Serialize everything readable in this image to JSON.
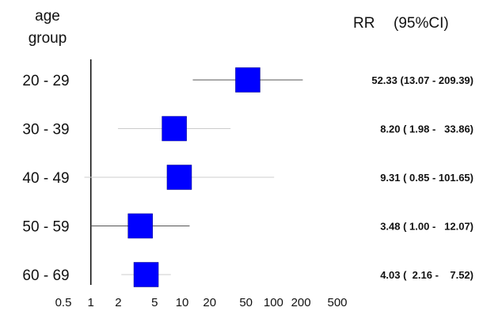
{
  "header": {
    "group_line1": "age",
    "group_line2": "group",
    "rr": "RR",
    "ci": "(95%CI)"
  },
  "colors": {
    "box": "#0000ff",
    "ci_line": "#cccccc",
    "axis": "#111111"
  },
  "chart_data": {
    "type": "forest",
    "x_scale": "log",
    "xlim": [
      0.5,
      500
    ],
    "xticks": [
      0.5,
      1,
      2,
      5,
      10,
      20,
      50,
      100,
      200,
      500
    ],
    "xtick_labels": [
      "0.5",
      "1",
      "2",
      "5",
      "10",
      "20",
      "50",
      "100",
      "200",
      "500"
    ],
    "reference_line": 1,
    "rows": [
      {
        "group": "20 - 29",
        "rr": 52.33,
        "lo": 13.07,
        "hi": 209.39,
        "label": "52.33 (13.07 - 209.39)"
      },
      {
        "group": "30 - 39",
        "rr": 8.2,
        "lo": 1.98,
        "hi": 33.86,
        "label": "8.20 ( 1.98 -   33.86)"
      },
      {
        "group": "40 - 49",
        "rr": 9.31,
        "lo": 0.85,
        "hi": 101.65,
        "label": "9.31 ( 0.85 - 101.65)"
      },
      {
        "group": "50 - 59",
        "rr": 3.48,
        "lo": 1.0,
        "hi": 12.07,
        "label": "3.48 ( 1.00 -   12.07)"
      },
      {
        "group": "60 - 69",
        "rr": 4.03,
        "lo": 2.16,
        "hi": 7.52,
        "label": "4.03 (  2.16 -    7.52)"
      }
    ]
  }
}
